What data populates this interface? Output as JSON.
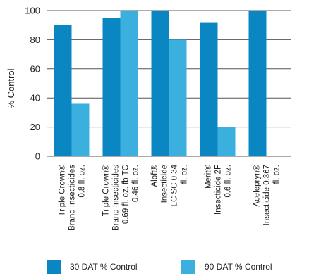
{
  "chart_data": {
    "type": "bar",
    "ylabel": "% Control",
    "xlabel": "",
    "ylim": [
      0,
      100
    ],
    "yticks": [
      0,
      20,
      40,
      60,
      80,
      100
    ],
    "grid": "y",
    "legend_position": "bottom",
    "categories": [
      [
        "Triple Crown®",
        "Brand Insecticides",
        "0.8 fl. oz."
      ],
      [
        "Triple Crown®",
        "Brand Insecticides",
        "0.69 fl. oz. fb TC",
        "0.46 fl. oz."
      ],
      [
        "Aloft®",
        "Insecticide",
        "LC SC 0.34",
        "fl. oz."
      ],
      [
        "Merit®",
        "Insecticide 2F",
        "0.6 fl. oz."
      ],
      [
        "Acelepryn®",
        "Insecticide 0.367",
        "fl. oz."
      ]
    ],
    "series": [
      {
        "name": "30 DAT % Control",
        "color": "#0a87c3",
        "values": [
          90,
          95,
          100,
          92,
          100
        ]
      },
      {
        "name": "90 DAT % Control",
        "color": "#3bb0df",
        "values": [
          36,
          100,
          80,
          20,
          0
        ]
      }
    ]
  }
}
